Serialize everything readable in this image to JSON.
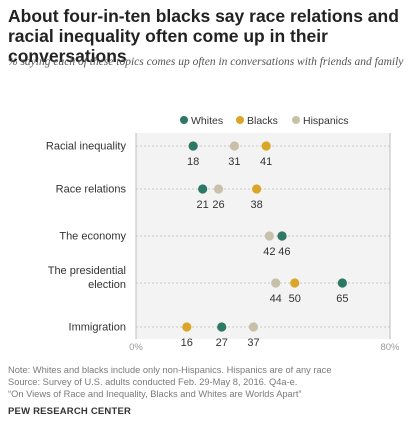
{
  "title": "About four-in-ten blacks say race relations and racial inequality often come up in their conversations",
  "subtitle": "% saying each of these topics comes up often in conversations with friends and family",
  "notes": [
    "Note: Whites and blacks include only non-Hispanics. Hispanics are of any race",
    "Source: Survey of U.S. adults conducted Feb. 29-May 8, 2016. Q4a-e.",
    "“On Views of Race and Inequality, Blacks and Whites are Worlds Apart”"
  ],
  "source_org": "PEW RESEARCH CENTER",
  "colors": {
    "Whites": "#2e7866",
    "Blacks": "#d9a628",
    "Hispanics": "#c8c0a8",
    "grid": "#bdbdbd",
    "band": "#f3f3f3"
  },
  "chart_data": {
    "type": "dot",
    "categories": [
      [
        "Racial inequality"
      ],
      [
        "Race relations"
      ],
      [
        "The economy"
      ],
      [
        "The presidential",
        "election"
      ],
      [
        "Immigration"
      ]
    ],
    "series": [
      {
        "name": "Whites",
        "values": [
          18,
          21,
          46,
          65,
          27
        ]
      },
      {
        "name": "Blacks",
        "values": [
          41,
          38,
          46,
          50,
          16
        ]
      },
      {
        "name": "Hispanics",
        "values": [
          31,
          26,
          42,
          44,
          37
        ]
      }
    ],
    "legend_order": [
      "Whites",
      "Blacks",
      "Hispanics"
    ],
    "legend_position": "top",
    "data_label_order": [
      [
        "Whites",
        "Hispanics",
        "Blacks"
      ],
      [
        "Whites",
        "Hispanics",
        "Blacks"
      ],
      [
        "Hispanics",
        "Whites"
      ],
      [
        "Hispanics",
        "Blacks",
        "Whites"
      ],
      [
        "Blacks",
        "Whites",
        "Hispanics"
      ]
    ],
    "xlim": [
      0,
      80
    ],
    "x_tick_labels": [
      "0%",
      "80%"
    ]
  }
}
